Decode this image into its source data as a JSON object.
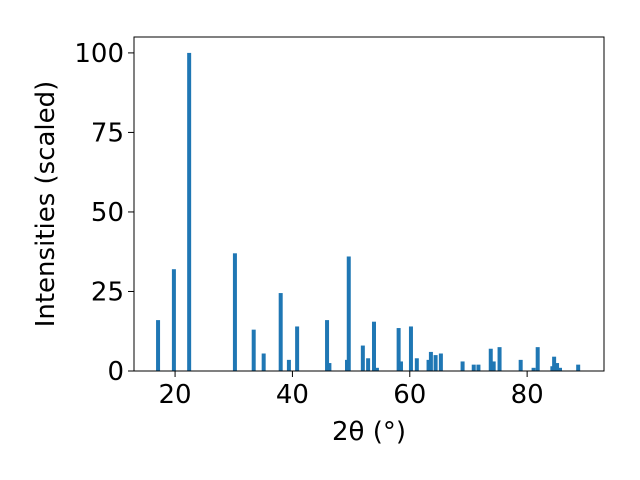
{
  "chart_data": {
    "type": "bar",
    "x_label": "2θ (°)",
    "y_label": "Intensities (scaled)",
    "x": [
      17.1,
      19.8,
      22.4,
      30.2,
      33.4,
      35.1,
      38.0,
      39.4,
      40.8,
      45.9,
      46.3,
      49.3,
      49.6,
      52.0,
      52.9,
      53.9,
      54.4,
      58.1,
      58.5,
      60.2,
      61.2,
      63.2,
      63.6,
      64.4,
      65.3,
      69.0,
      70.9,
      71.7,
      73.8,
      74.3,
      75.3,
      78.9,
      81.1,
      81.8,
      84.3,
      84.6,
      85.1,
      85.6,
      88.7
    ],
    "values": [
      16,
      32,
      100,
      37,
      13,
      5.5,
      24.5,
      3.5,
      14,
      16,
      2.5,
      3.5,
      36,
      8,
      4,
      15.5,
      1,
      13.5,
      3,
      14,
      4,
      3.5,
      6,
      5,
      5.5,
      3,
      2,
      2,
      7,
      3,
      7.5,
      3.5,
      1,
      7.5,
      1.5,
      4.5,
      2.5,
      1,
      2
    ],
    "color": "#1f77b4",
    "xlim": [
      13,
      93.1
    ],
    "ylim": [
      0,
      105
    ],
    "xticks": [
      20,
      40,
      60,
      80
    ],
    "yticks": [
      0,
      25,
      50,
      75,
      100
    ]
  }
}
